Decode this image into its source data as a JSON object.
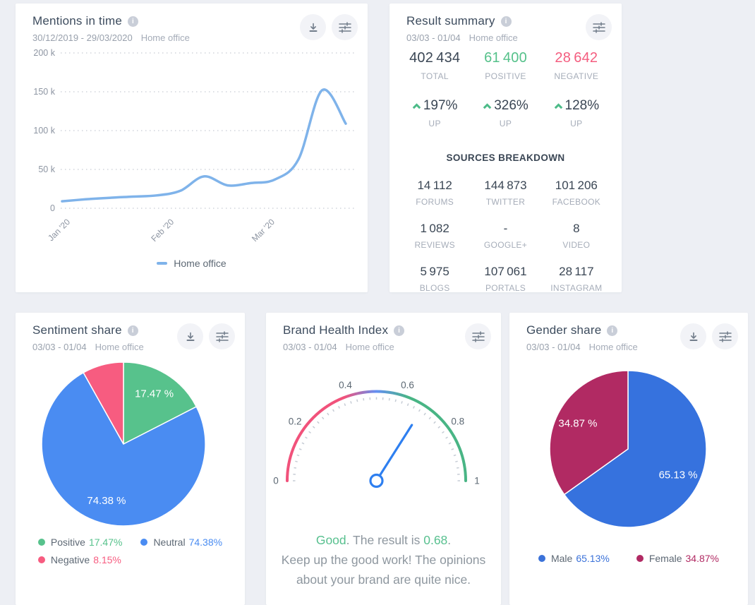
{
  "colors": {
    "page_bg": "#edeff4",
    "card_bg": "#ffffff",
    "title": "#3d4c5e",
    "subtitle": "#99a1ad",
    "accent_green": "#55c18a",
    "accent_red": "#f45d7f",
    "line_blue": "#7fb3ea",
    "needle_blue": "#2e7ff0"
  },
  "cards": {
    "mentions": {
      "title": "Mentions in time",
      "date_range": "30/12/2019 - 29/03/2020",
      "project": "Home office",
      "legend_label": "Home office",
      "icons": [
        "download-icon",
        "sliders-icon"
      ]
    },
    "summary": {
      "title": "Result summary",
      "date_range": "03/03 - 01/04",
      "project": "Home office",
      "icons": [
        "sliders-icon"
      ],
      "stats": [
        {
          "value": "402 434",
          "label": "TOTAL"
        },
        {
          "value": "61 400",
          "label": "POSITIVE"
        },
        {
          "value": "28 642",
          "label": "NEGATIVE"
        }
      ],
      "changes": [
        {
          "value": "197%",
          "label": "UP"
        },
        {
          "value": "326%",
          "label": "UP"
        },
        {
          "value": "128%",
          "label": "UP"
        }
      ],
      "sources_heading": "SOURCES BREAKDOWN",
      "sources": [
        {
          "value": "14 112",
          "label": "FORUMS"
        },
        {
          "value": "144 873",
          "label": "TWITTER"
        },
        {
          "value": "101 206",
          "label": "FACEBOOK"
        },
        {
          "value": "1 082",
          "label": "REVIEWS"
        },
        {
          "value": "-",
          "label": "GOOGLE+"
        },
        {
          "value": "8",
          "label": "VIDEO"
        },
        {
          "value": "5 975",
          "label": "BLOGS"
        },
        {
          "value": "107 061",
          "label": "PORTALS"
        },
        {
          "value": "28 117",
          "label": "INSTAGRAM"
        }
      ]
    },
    "sentiment": {
      "title": "Sentiment share",
      "date_range": "03/03 - 01/04",
      "project": "Home office",
      "icons": [
        "download-icon",
        "sliders-icon"
      ],
      "legend": [
        {
          "label": "Positive",
          "value": "17.47%",
          "color": "#57c28c"
        },
        {
          "label": "Neutral",
          "value": "74.38%",
          "color": "#4a8cf2"
        },
        {
          "label": "Negative",
          "value": "8.15%",
          "color": "#f75c80"
        }
      ]
    },
    "bhi": {
      "title": "Brand Health Index",
      "date_range": "03/03 - 01/04",
      "project": "Home office",
      "icons": [
        "sliders-icon"
      ],
      "result": {
        "status": "Good",
        "mid": ". The result is ",
        "value": "0.68",
        "dot": ".",
        "line2": "Keep up the good work! The opinions about your brand are quite nice."
      }
    },
    "gender": {
      "title": "Gender share",
      "date_range": "03/03 - 01/04",
      "project": "Home office",
      "icons": [
        "download-icon",
        "sliders-icon"
      ],
      "legend": [
        {
          "label": "Male",
          "value": "65.13%",
          "color": "#3b72d9"
        },
        {
          "label": "Female",
          "value": "34.87%",
          "color": "#b12a63"
        }
      ]
    }
  },
  "chart_data": [
    {
      "type": "line",
      "title": "Mentions in time",
      "series": [
        {
          "name": "Home office",
          "color": "#7fb3ea",
          "values": [
            9000,
            11500,
            13500,
            15000,
            16500,
            22500,
            41000,
            29500,
            32500,
            37000,
            63000,
            152000,
            109000
          ]
        }
      ],
      "ylim": [
        0,
        200000
      ],
      "y_ticks": [
        "200 k",
        "150 k",
        "100 k",
        "50 k",
        "0"
      ],
      "x_ticks": [
        {
          "label": "Jan '20",
          "pos": 0.0
        },
        {
          "label": "Feb '20",
          "pos": 0.366
        },
        {
          "label": "Mar '20",
          "pos": 0.721
        }
      ],
      "grid": "dotted-horizontal",
      "legend_position": "bottom"
    },
    {
      "type": "pie",
      "title": "Sentiment share",
      "start": "top",
      "direction": "clockwise",
      "slices": [
        {
          "label": "Positive",
          "value": 17.47,
          "color": "#57c28c",
          "data_label": "17.47 %"
        },
        {
          "label": "Neutral",
          "value": 74.38,
          "color": "#4a8cf2",
          "data_label": "74.38 %"
        },
        {
          "label": "Negative",
          "value": 8.15,
          "color": "#f75c80",
          "data_label": ""
        }
      ]
    },
    {
      "type": "gauge",
      "title": "Brand Health Index",
      "min": 0,
      "max": 1,
      "value": 0.68,
      "tick_labels": [
        "0",
        "0.2",
        "0.4",
        "0.6",
        "0.8",
        "1"
      ],
      "arc_colors": [
        "#f1527b",
        "#638ff2",
        "#49b585"
      ],
      "needle_color": "#2e7ff0",
      "status_text": "Good"
    },
    {
      "type": "pie",
      "title": "Gender share",
      "start": "top",
      "direction": "clockwise",
      "slices": [
        {
          "label": "Male",
          "value": 65.13,
          "color": "#3672de",
          "data_label": "65.13 %"
        },
        {
          "label": "Female",
          "value": 34.87,
          "color": "#b12a63",
          "data_label": "34.87 %"
        }
      ]
    }
  ]
}
